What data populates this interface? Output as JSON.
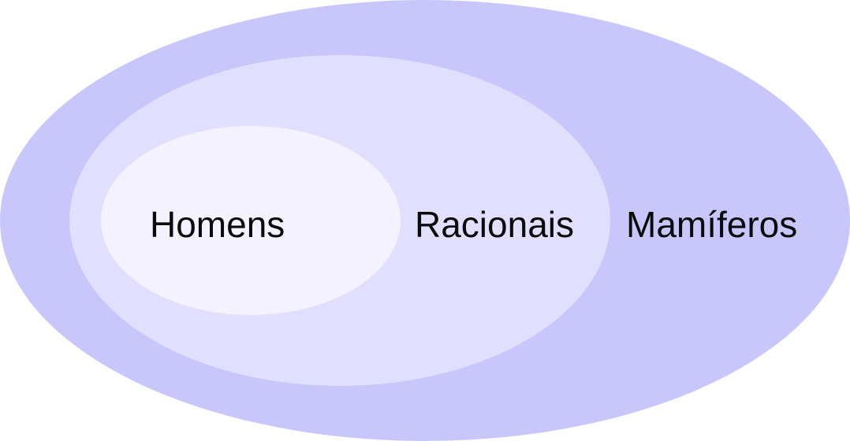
{
  "diagram": {
    "type": "nested-sets",
    "sets": {
      "outer": {
        "label": "Mamíferos",
        "color": "#c8c6fa"
      },
      "middle": {
        "label": "Racionais",
        "color": "#e1dffd"
      },
      "inner": {
        "label": "Homens",
        "color": "#f3f2fe"
      }
    },
    "label_color": "#0b0b0b"
  }
}
